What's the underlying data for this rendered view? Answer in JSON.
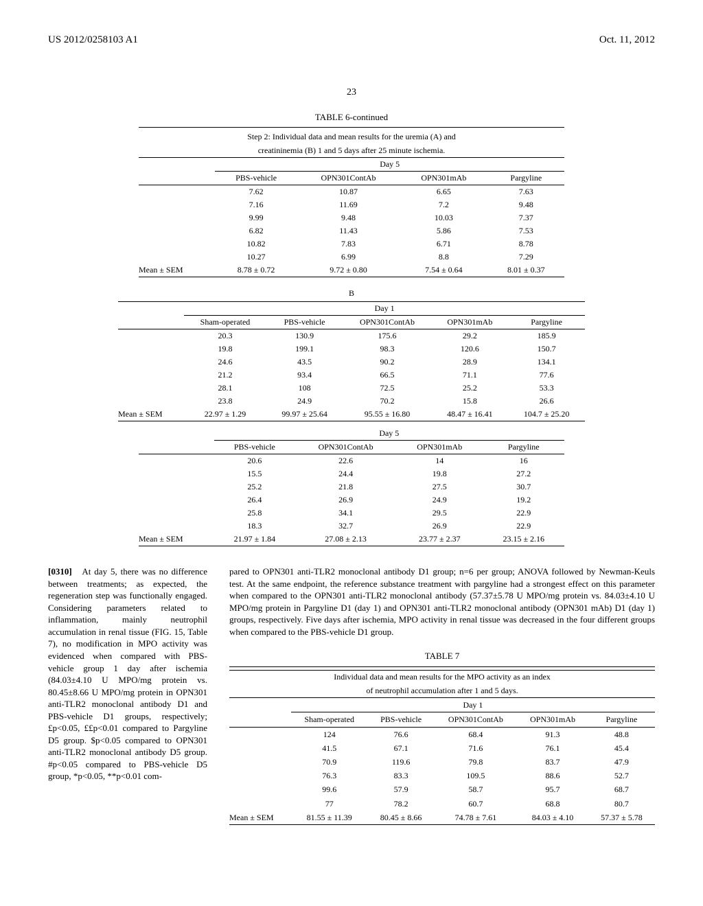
{
  "header": {
    "pub_number": "US 2012/0258103 A1",
    "pub_date": "Oct. 11, 2012"
  },
  "page_number": "23",
  "table6": {
    "title": "TABLE 6-continued",
    "caption_line1": "Step 2: Individual data and mean results for the uremia (A) and",
    "caption_line2": "creatininemia (B) 1 and 5 days after 25 minute ischemia.",
    "section_a_day5": {
      "day_label": "Day 5",
      "cols": [
        "PBS-vehicle",
        "OPN301ContAb",
        "OPN301mAb",
        "Pargyline"
      ],
      "rows": [
        [
          "7.62",
          "10.87",
          "6.65",
          "7.63"
        ],
        [
          "7.16",
          "11.69",
          "7.2",
          "9.48"
        ],
        [
          "9.99",
          "9.48",
          "10.03",
          "7.37"
        ],
        [
          "6.82",
          "11.43",
          "5.86",
          "7.53"
        ],
        [
          "10.82",
          "7.83",
          "6.71",
          "8.78"
        ],
        [
          "10.27",
          "6.99",
          "8.8",
          "7.29"
        ]
      ],
      "mean_label": "Mean ± SEM",
      "mean": [
        "8.78 ± 0.72",
        "9.72 ± 0.80",
        "7.54 ± 0.64",
        "8.01 ± 0.37"
      ]
    },
    "section_b_label": "B",
    "section_b_day1": {
      "day_label": "Day 1",
      "cols": [
        "Sham-operated",
        "PBS-vehicle",
        "OPN301ContAb",
        "OPN301mAb",
        "Pargyline"
      ],
      "rows": [
        [
          "20.3",
          "130.9",
          "175.6",
          "29.2",
          "185.9"
        ],
        [
          "19.8",
          "199.1",
          "98.3",
          "120.6",
          "150.7"
        ],
        [
          "24.6",
          "43.5",
          "90.2",
          "28.9",
          "134.1"
        ],
        [
          "21.2",
          "93.4",
          "66.5",
          "71.1",
          "77.6"
        ],
        [
          "28.1",
          "108",
          "72.5",
          "25.2",
          "53.3"
        ],
        [
          "23.8",
          "24.9",
          "70.2",
          "15.8",
          "26.6"
        ]
      ],
      "mean_label": "Mean ± SEM",
      "mean": [
        "22.97 ± 1.29",
        "99.97 ± 25.64",
        "95.55 ± 16.80",
        "48.47 ± 16.41",
        "104.7 ± 25.20"
      ]
    },
    "section_b_day5": {
      "day_label": "Day 5",
      "cols": [
        "PBS-vehicle",
        "OPN301ContAb",
        "OPN301mAb",
        "Pargyline"
      ],
      "rows": [
        [
          "20.6",
          "22.6",
          "14",
          "16"
        ],
        [
          "15.5",
          "24.4",
          "19.8",
          "27.2"
        ],
        [
          "25.2",
          "21.8",
          "27.5",
          "30.7"
        ],
        [
          "26.4",
          "26.9",
          "24.9",
          "19.2"
        ],
        [
          "25.8",
          "34.1",
          "29.5",
          "22.9"
        ],
        [
          "18.3",
          "32.7",
          "26.9",
          "22.9"
        ]
      ],
      "mean_label": "Mean ± SEM",
      "mean": [
        "21.97 ± 1.84",
        "27.08 ± 2.13",
        "23.77 ± 2.37",
        "23.15 ± 2.16"
      ]
    }
  },
  "paragraph": {
    "num": "[0310]",
    "left": "At day 5, there was no difference between treatments; as expected, the regeneration step was functionally engaged. Considering parameters related to inflammation, mainly neutrophil accumulation in renal tissue (FIG. 15, Table 7), no modification in MPO activity was evidenced when compared with PBS-vehicle group 1 day after ischemia (84.03±4.10 U MPO/mg protein vs. 80.45±8.66 U MPO/mg protein in OPN301 anti-TLR2 monoclonal antibody D1 and PBS-vehicle D1 groups, respectively; £p<0.05, ££p<0.01 compared to Pargyline D5 group. $p<0.05 compared to OPN301 anti-TLR2 monoclonal antibody D5 group. #p<0.05 compared to PBS-vehicle D5 group, *p<0.05, **p<0.01 com-",
    "right": "pared to OPN301 anti-TLR2 monoclonal antibody D1 group; n=6 per group; ANOVA followed by Newman-Keuls test. At the same endpoint, the reference substance treatment with pargyline had a strongest effect on this parameter when compared to the OPN301 anti-TLR2 monoclonal antibody (57.37±5.78 U MPO/mg protein vs. 84.03±4.10 U MPO/mg protein in Pargyline D1 (day 1) and OPN301 anti-TLR2 monoclonal antibody (OPN301 mAb) D1 (day 1) groups, respectively. Five days after ischemia, MPO activity in renal tissue was decreased in the four different groups when compared to the PBS-vehicle D1 group."
  },
  "table7": {
    "title": "TABLE 7",
    "caption_line1": "Individual data and mean results for the MPO activity as an index",
    "caption_line2": "of neutrophil accumulation after 1 and 5 days.",
    "day_label": "Day 1",
    "cols": [
      "Sham-operated",
      "PBS-vehicle",
      "OPN301ContAb",
      "OPN301mAb",
      "Pargyline"
    ],
    "rows": [
      [
        "124",
        "76.6",
        "68.4",
        "91.3",
        "48.8"
      ],
      [
        "41.5",
        "67.1",
        "71.6",
        "76.1",
        "45.4"
      ],
      [
        "70.9",
        "119.6",
        "79.8",
        "83.7",
        "47.9"
      ],
      [
        "76.3",
        "83.3",
        "109.5",
        "88.6",
        "52.7"
      ],
      [
        "99.6",
        "57.9",
        "58.7",
        "95.7",
        "68.7"
      ],
      [
        "77",
        "78.2",
        "60.7",
        "68.8",
        "80.7"
      ]
    ],
    "mean_label": "Mean ± SEM",
    "mean": [
      "81.55 ± 11.39",
      "80.45 ± 8.66",
      "74.78 ± 7.61",
      "84.03 ± 4.10",
      "57.37 ± 5.78"
    ]
  }
}
